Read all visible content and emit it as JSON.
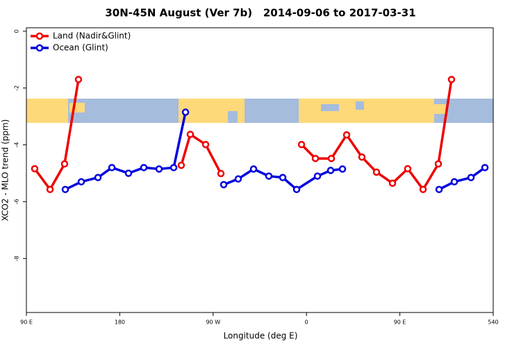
{
  "chart_data": {
    "type": "line",
    "title": "30N-45N August (Ver 7b)   2014-09-06 to 2017-03-31",
    "xlabel": "Longitude (deg E)",
    "ylabel": "XCO2 - MLO trend (ppm)",
    "xlim": [
      90,
      540
    ],
    "ylim": [
      -9.9,
      0.12
    ],
    "xticks": [
      {
        "value": 90,
        "label": "90 E"
      },
      180,
      {
        "value": 270,
        "label": "90 W"
      },
      {
        "value": 360,
        "label": "0"
      },
      {
        "value": 450,
        "label": "90 E"
      },
      540
    ],
    "yticks": [
      0,
      -2,
      -4,
      -6,
      -8
    ],
    "legend": "top-left",
    "grid": false,
    "series": [
      {
        "name": "Land (Nadir&Glint)",
        "color": "#ee0000",
        "x": [
          98,
          112.8,
          126.8,
          140.2,
          null,
          239.3,
          248,
          262.8,
          277.5,
          null,
          355.2,
          368.6,
          384,
          398.7,
          413.4,
          427.5,
          442.9,
          457.6,
          472.4,
          487.1,
          499.8
        ],
        "values": [
          -4.84,
          -5.57,
          -4.67,
          -1.7,
          null,
          -4.72,
          -3.63,
          -3.99,
          -5.01,
          null,
          -3.99,
          -4.48,
          -4.48,
          -3.65,
          -4.43,
          -4.96,
          -5.35,
          -4.84,
          -5.57,
          -4.67,
          -1.7
        ]
      },
      {
        "name": "Ocean (Glint)",
        "color": "#0000dd",
        "x": [
          127.5,
          142.9,
          159,
          172.4,
          188.4,
          203.2,
          217.9,
          232,
          243.4,
          null,
          280.2,
          294.2,
          309,
          323.7,
          337.1,
          350.5,
          370.6,
          383.3,
          394.7,
          null,
          487.8,
          502.5,
          518.6,
          532
        ],
        "values": [
          -5.57,
          -5.3,
          -5.15,
          -4.8,
          -5.0,
          -4.8,
          -4.85,
          -4.8,
          -2.85,
          null,
          -5.4,
          -5.2,
          -4.85,
          -5.1,
          -5.15,
          -5.57,
          -5.1,
          -4.9,
          -4.85,
          null,
          -5.57,
          -5.3,
          -5.15,
          -4.8
        ]
      }
    ]
  }
}
